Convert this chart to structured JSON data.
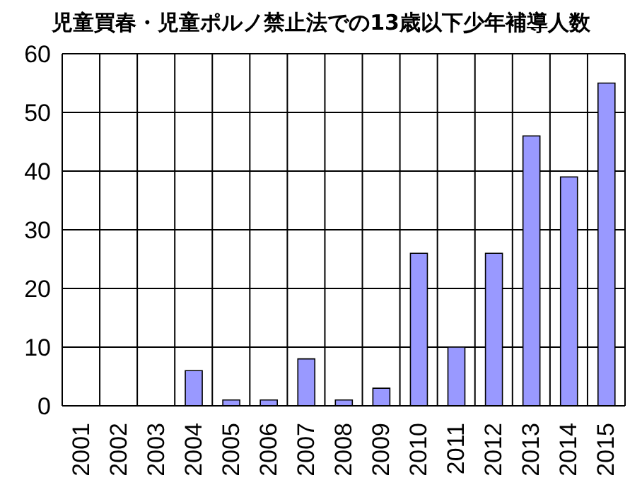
{
  "chart_data": {
    "type": "bar",
    "title": "児童買春・児童ポルノ禁止法での13歳以下少年補導人数",
    "categories": [
      "2001",
      "2002",
      "2003",
      "2004",
      "2005",
      "2006",
      "2007",
      "2008",
      "2009",
      "2010",
      "2011",
      "2012",
      "2013",
      "2014",
      "2015"
    ],
    "values": [
      0,
      0,
      0,
      6,
      1,
      1,
      8,
      1,
      3,
      26,
      10,
      26,
      46,
      39,
      55
    ],
    "color": "#9999ff",
    "ylim": [
      0,
      60
    ],
    "yticks": [
      0,
      10,
      20,
      30,
      40,
      50,
      60
    ],
    "grid": true
  }
}
